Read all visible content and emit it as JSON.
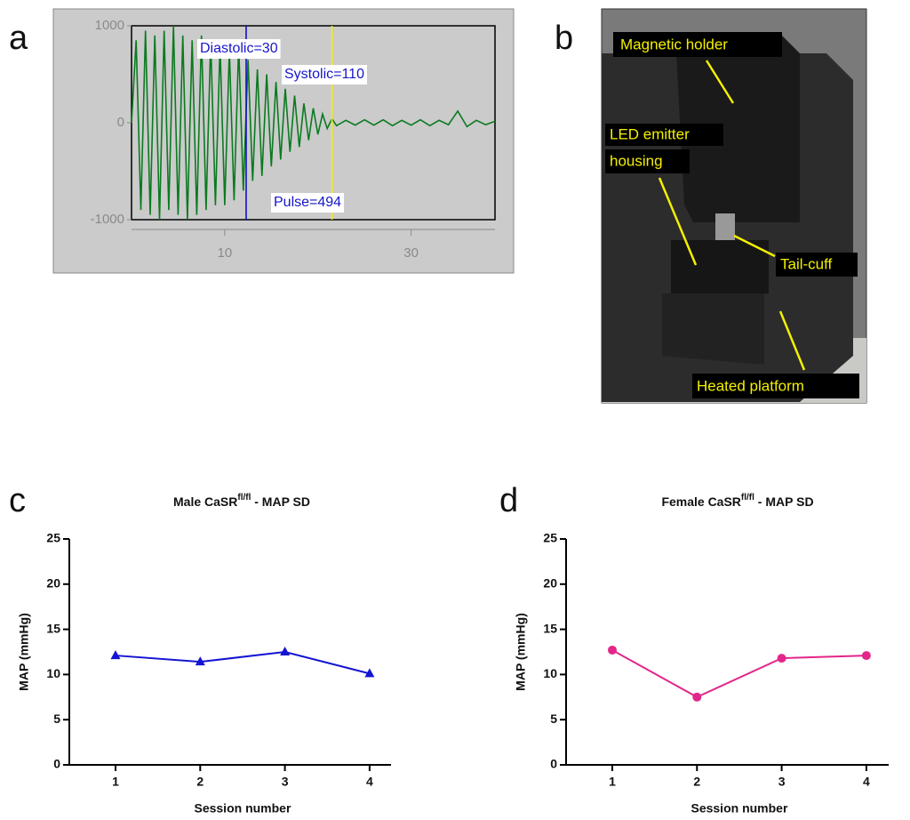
{
  "panel_labels": [
    "a",
    "b",
    "c",
    "d"
  ],
  "photo": {
    "labels": [
      "Magnetic holder",
      "LED emitter",
      "housing",
      "Tail-cuff",
      "Heated platform"
    ]
  },
  "chart_data": [
    {
      "type": "line",
      "color": "#0b7a20",
      "x": [
        0,
        0.5,
        1,
        1.5,
        2,
        2.5,
        3,
        3.5,
        4,
        4.5,
        5,
        5.5,
        6,
        6.5,
        7,
        7.5,
        8,
        8.5,
        9,
        9.5,
        10,
        10.5,
        11,
        11.5,
        12,
        12.5,
        13,
        13.5,
        14,
        14.5,
        15,
        15.5,
        16,
        16.5,
        17,
        17.5,
        18,
        18.5,
        19,
        19.5,
        20,
        20.5,
        21,
        21.5,
        22,
        23,
        24,
        25,
        26,
        27,
        28,
        29,
        30,
        31,
        32,
        33,
        34,
        35,
        36,
        37,
        38,
        39
      ],
      "values": [
        0,
        850,
        -900,
        950,
        -950,
        900,
        -1000,
        950,
        -900,
        1000,
        -950,
        900,
        -1000,
        850,
        -950,
        900,
        -900,
        850,
        -850,
        800,
        -850,
        750,
        -800,
        800,
        -700,
        650,
        -600,
        550,
        -550,
        500,
        -450,
        420,
        -380,
        350,
        -300,
        280,
        -250,
        200,
        -180,
        150,
        -120,
        90,
        -60,
        40,
        -30,
        25,
        -25,
        30,
        -25,
        30,
        -30,
        25,
        -25,
        30,
        -30,
        25,
        -20,
        120,
        -40,
        25,
        -20,
        15
      ],
      "xlim": [
        0,
        39
      ],
      "xticks": [
        10,
        30
      ],
      "ylim": [
        -1000,
        1000
      ],
      "yticks": [
        -1000,
        0,
        1000
      ],
      "markers": [
        {
          "x": 12.3,
          "color": "#1010c8"
        },
        {
          "x": 21.5,
          "color": "#f5f000"
        }
      ],
      "annotations": [
        "Diastolic=30",
        "Systolic=110",
        "Pulse=494"
      ]
    },
    {
      "type": "line",
      "title": "Male CaSR",
      "title_sup": "fl/fl",
      "title_suffix": " - MAP SD",
      "x_label": "Session number",
      "y_label": "MAP (mmHg)",
      "categories": [
        "1",
        "2",
        "3",
        "4"
      ],
      "values": [
        12.1,
        11.4,
        12.5,
        10.1
      ],
      "color": "#1414d2",
      "marker": "triangle",
      "ylim": [
        0,
        25
      ],
      "yticks": [
        0,
        5,
        10,
        15,
        20,
        25
      ]
    },
    {
      "type": "line",
      "title": "Female CaSR",
      "title_sup": "fl/fl",
      "title_suffix": " - MAP SD",
      "x_label": "Session number",
      "y_label": "MAP (mmHg)",
      "categories": [
        "1",
        "2",
        "3",
        "4"
      ],
      "values": [
        12.7,
        7.5,
        11.8,
        12.1
      ],
      "color": "#e2268a",
      "marker": "circle",
      "ylim": [
        0,
        25
      ],
      "yticks": [
        0,
        5,
        10,
        15,
        20,
        25
      ]
    }
  ]
}
